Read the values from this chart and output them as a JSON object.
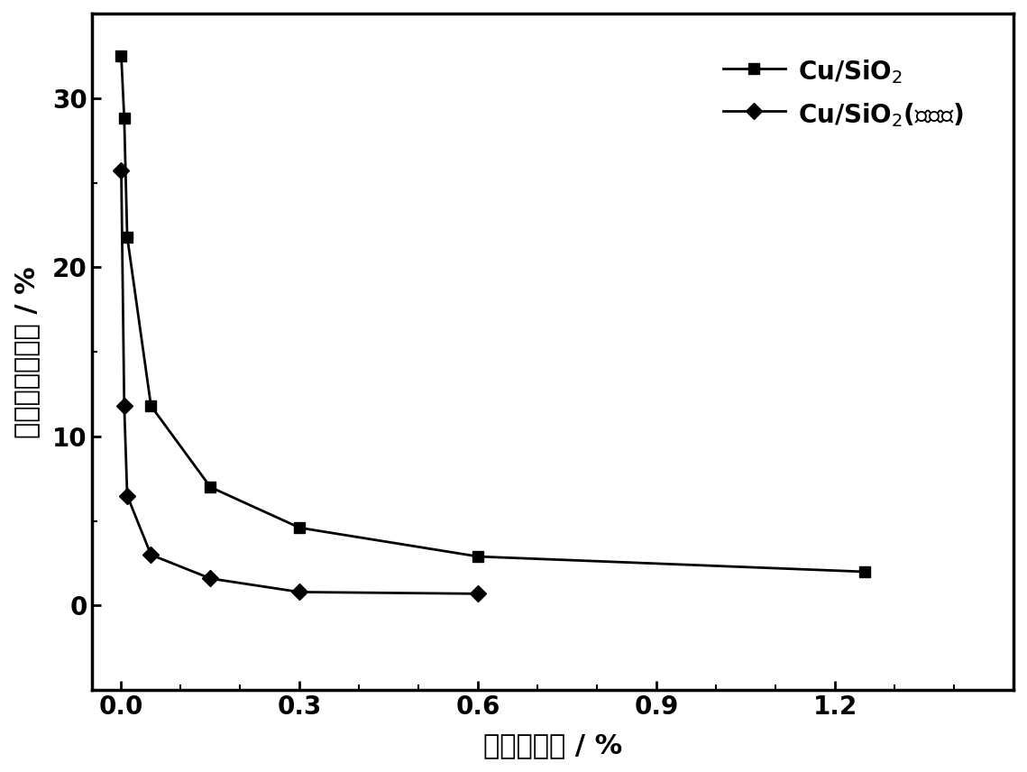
{
  "series1_x": [
    0.0,
    0.005,
    0.01,
    0.05,
    0.15,
    0.3,
    0.6,
    1.25
  ],
  "series1_y": [
    32.5,
    28.8,
    21.8,
    11.8,
    7.0,
    4.6,
    2.9,
    2.0
  ],
  "series2_x": [
    0.0,
    0.005,
    0.01,
    0.05,
    0.15,
    0.3,
    0.6
  ],
  "series2_y": [
    25.7,
    11.8,
    6.5,
    3.0,
    1.6,
    0.8,
    0.7
  ],
  "xlabel": "丙烯转化率 / %",
  "ylabel": "环氧丙烷选择性 / %",
  "legend1": "Cu/SiO$_2$",
  "legend2": "Cu/SiO$_2$(未酸化)",
  "xlim": [
    -0.05,
    1.5
  ],
  "ylim": [
    -5,
    35
  ],
  "xticks": [
    0.0,
    0.3,
    0.6,
    0.9,
    1.2
  ],
  "yticks": [
    0,
    10,
    20,
    30
  ],
  "color": "#000000",
  "linewidth": 2.0,
  "marker_size": 9
}
